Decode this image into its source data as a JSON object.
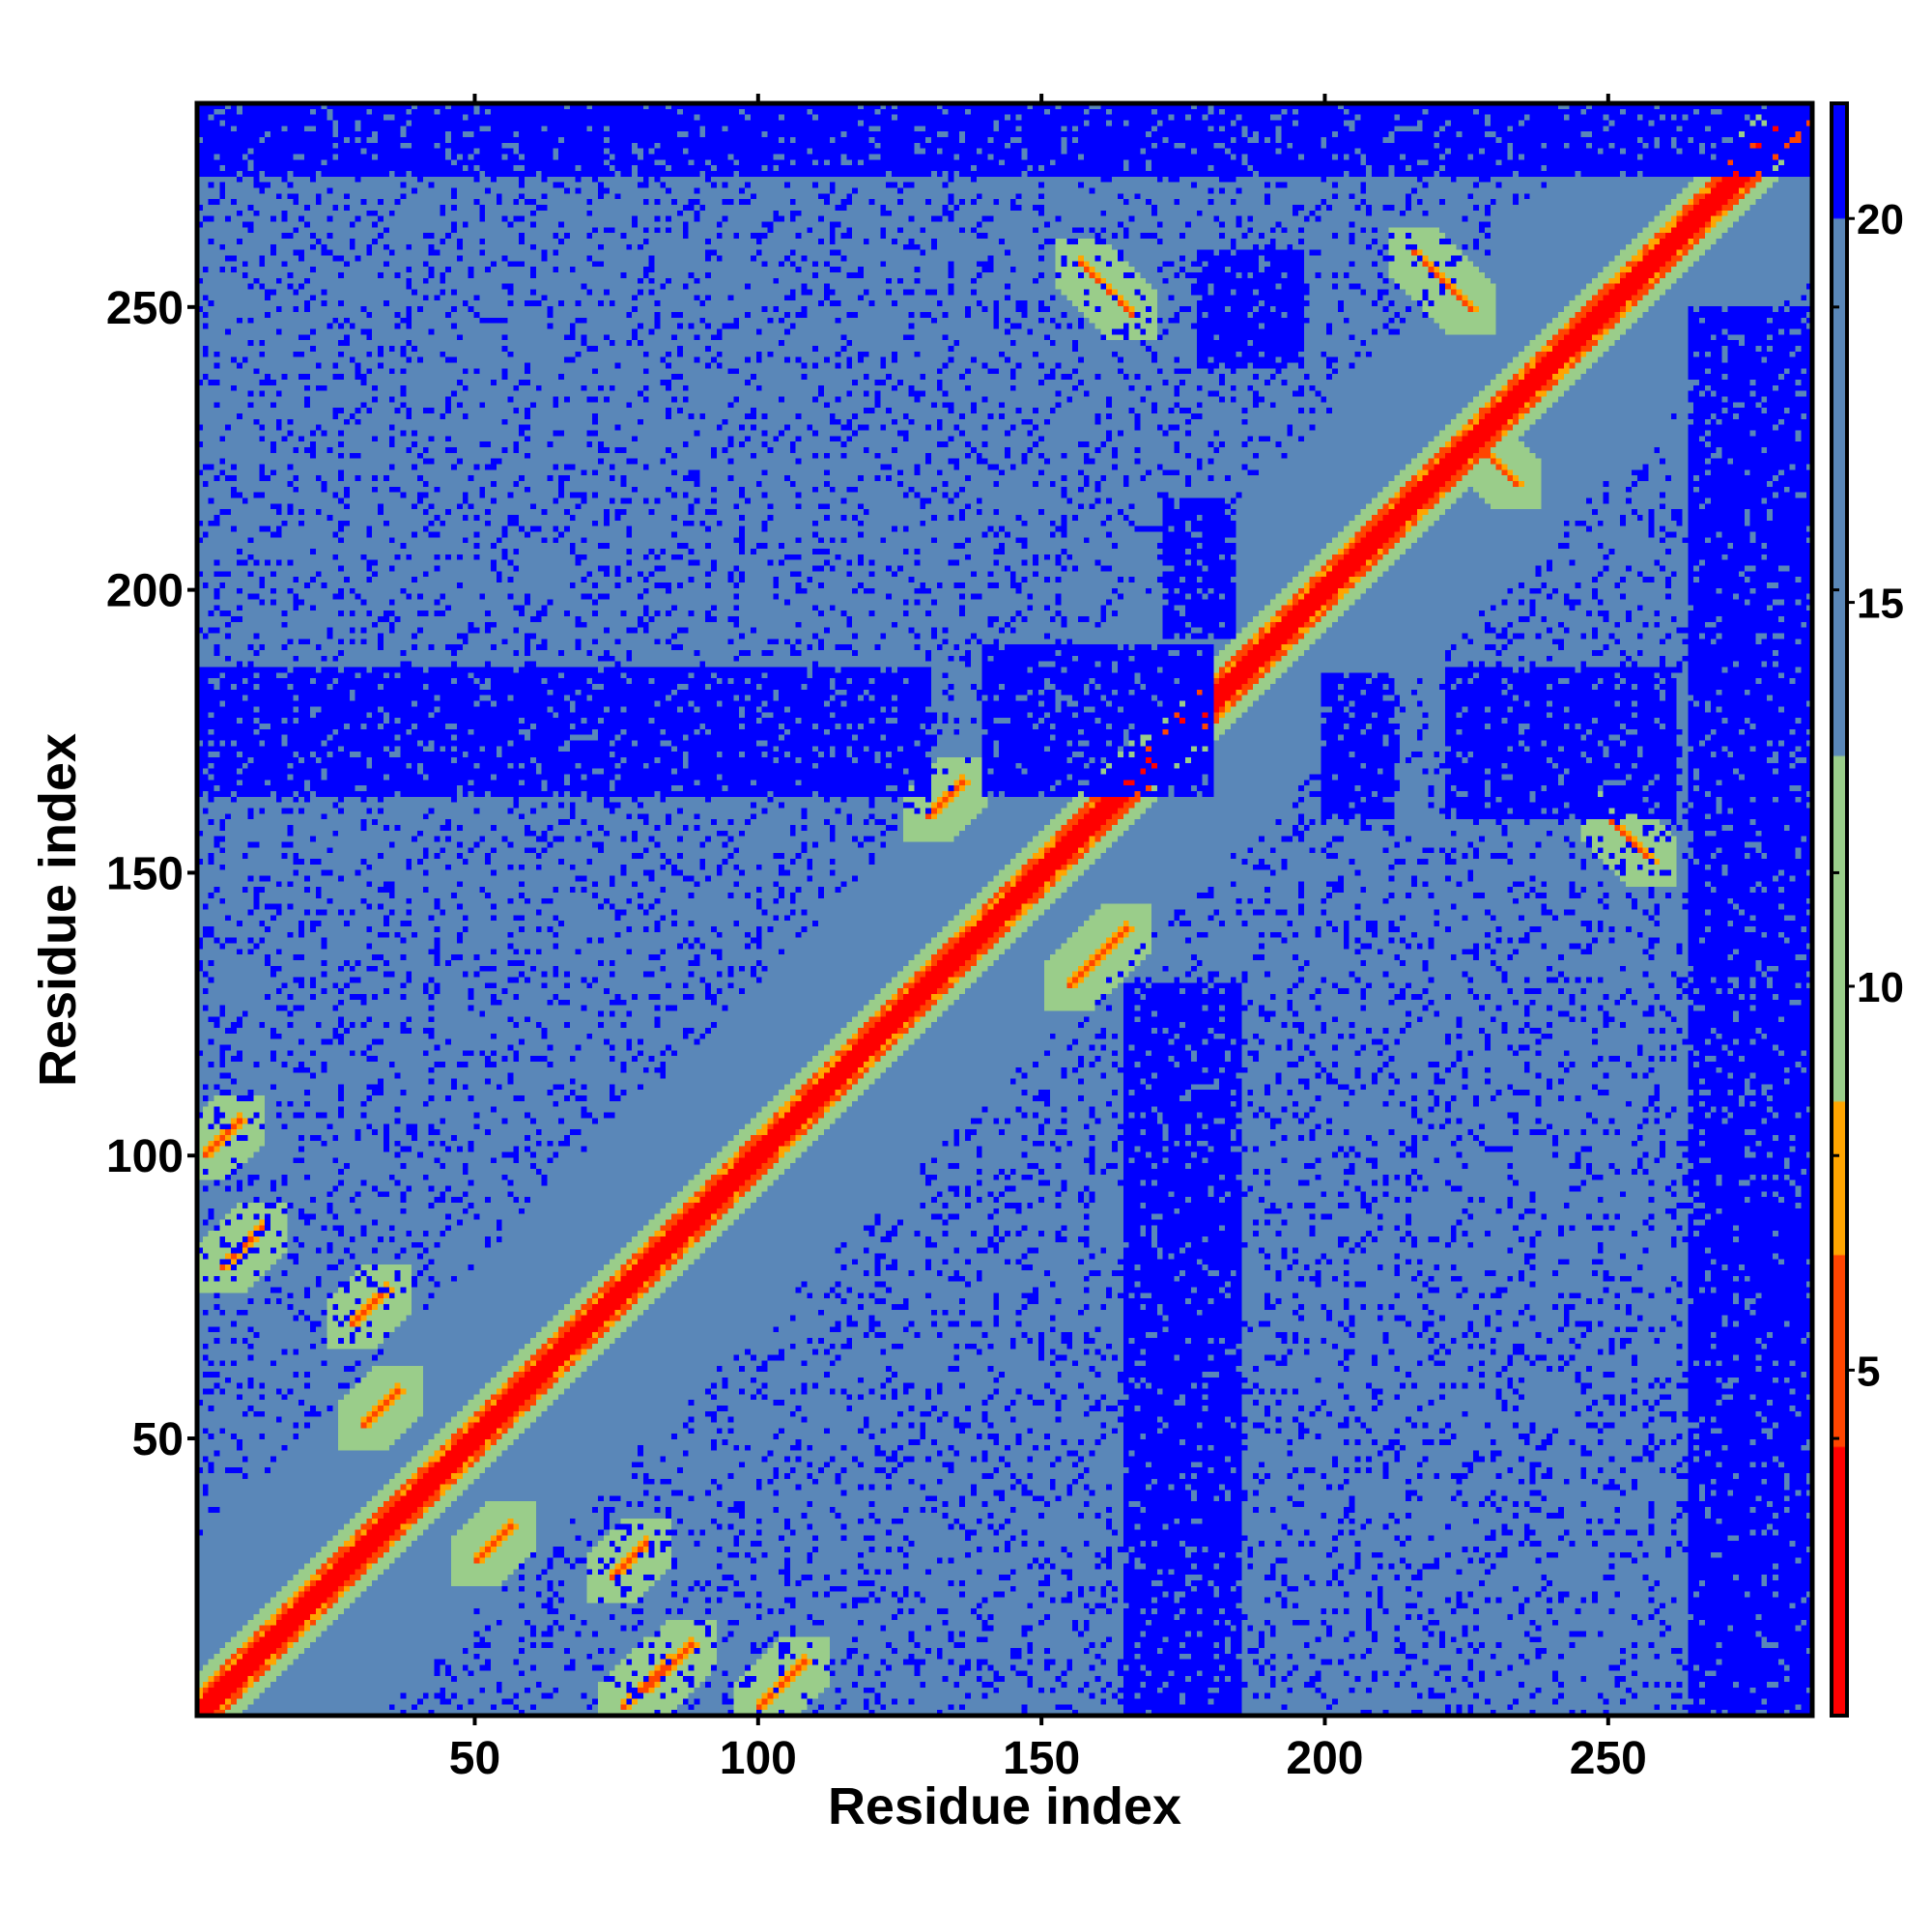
{
  "chart_data": {
    "type": "heatmap",
    "title": "",
    "xlabel": "Residue index",
    "ylabel": "Residue index",
    "n_residues": 286,
    "xlim": [
      1,
      286
    ],
    "ylim": [
      1,
      286
    ],
    "x_ticks": [
      50,
      100,
      150,
      200,
      250
    ],
    "y_ticks": [
      50,
      100,
      150,
      200,
      250
    ],
    "colorbar": {
      "range": [
        0.5,
        21.5
      ],
      "ticks": [
        5,
        10,
        15,
        20
      ],
      "bands": [
        {
          "from": 0.5,
          "to": 4.0,
          "color": "#ff0000"
        },
        {
          "from": 4.0,
          "to": 6.5,
          "color": "#ff4500"
        },
        {
          "from": 6.5,
          "to": 8.5,
          "color": "#ffa500"
        },
        {
          "from": 8.5,
          "to": 13.0,
          "color": "#9acd8a"
        },
        {
          "from": 13.0,
          "to": 20.0,
          "color": "#5a87b8"
        },
        {
          "from": 20.0,
          "to": 21.5,
          "color": "#0000ff"
        }
      ]
    },
    "helix_segments": [
      [
        8,
        22
      ],
      [
        24,
        40
      ],
      [
        40,
        58
      ],
      [
        60,
        78
      ],
      [
        83,
        100
      ],
      [
        112,
        128
      ],
      [
        135,
        155
      ],
      [
        166,
        178
      ],
      [
        186,
        206
      ],
      [
        222,
        236
      ],
      [
        258,
        286
      ]
    ],
    "strand_contacts": [
      {
        "a": [
          157,
          166
        ],
        "b": [
          258,
          249
        ],
        "orientation": "anti"
      },
      {
        "a": [
          216,
          226
        ],
        "b": [
          260,
          250
        ],
        "orientation": "anti"
      },
      {
        "a": [
          228,
          234
        ],
        "b": [
          225,
          218
        ],
        "orientation": "anti"
      },
      {
        "a": [
          250,
          258
        ],
        "b": [
          160,
          152
        ],
        "orientation": "anti"
      },
      {
        "a": [
          155,
          165
        ],
        "b": [
          130,
          136
        ],
        "orientation": "parallel"
      },
      {
        "a": [
          130,
          136
        ],
        "b": [
          160,
          166
        ],
        "orientation": "parallel"
      },
      {
        "a": [
          5,
          12
        ],
        "b": [
          80,
          88
        ],
        "orientation": "anti"
      },
      {
        "a": [
          80,
          88
        ],
        "b": [
          5,
          12
        ],
        "orientation": "anti"
      },
      {
        "a": [
          28,
          34
        ],
        "b": [
          70,
          78
        ],
        "orientation": "parallel"
      },
      {
        "a": [
          30,
          36
        ],
        "b": [
          52,
          58
        ],
        "orientation": "parallel"
      },
      {
        "a": [
          50,
          56
        ],
        "b": [
          28,
          34
        ],
        "orientation": "parallel"
      },
      {
        "a": [
          76,
          84
        ],
        "b": [
          2,
          10
        ],
        "orientation": "parallel"
      },
      {
        "a": [
          100,
          108
        ],
        "b": [
          2,
          8
        ],
        "orientation": "parallel"
      },
      {
        "a": [
          2,
          8
        ],
        "b": [
          100,
          106
        ],
        "orientation": "parallel"
      },
      {
        "a": [
          74,
          80
        ],
        "b": [
          25,
          32
        ],
        "orientation": "parallel"
      }
    ],
    "far_regions": [
      {
        "x": [
          1,
          130
        ],
        "y": [
          164,
          186
        ],
        "value": 21
      },
      {
        "x": [
          140,
          180
        ],
        "y": [
          164,
          190
        ],
        "value": 21
      },
      {
        "x": [
          165,
          185
        ],
        "y": [
          1,
          130
        ],
        "value": 21
      },
      {
        "x": [
          265,
          286
        ],
        "y": [
          1,
          250
        ],
        "value": 21
      },
      {
        "x": [
          1,
          286
        ],
        "y": [
          274,
          286
        ],
        "value": 21
      },
      {
        "x": [
          178,
          196
        ],
        "y": [
          240,
          260
        ],
        "value": 21
      },
      {
        "x": [
          200,
          212
        ],
        "y": [
          160,
          185
        ],
        "value": 21
      },
      {
        "x": [
          222,
          240
        ],
        "y": [
          160,
          186
        ],
        "value": 21
      },
      {
        "x": [
          240,
          262
        ],
        "y": [
          160,
          186
        ],
        "value": 21
      },
      {
        "x": [
          172,
          184
        ],
        "y": [
          192,
          216
        ],
        "value": 21
      }
    ]
  }
}
